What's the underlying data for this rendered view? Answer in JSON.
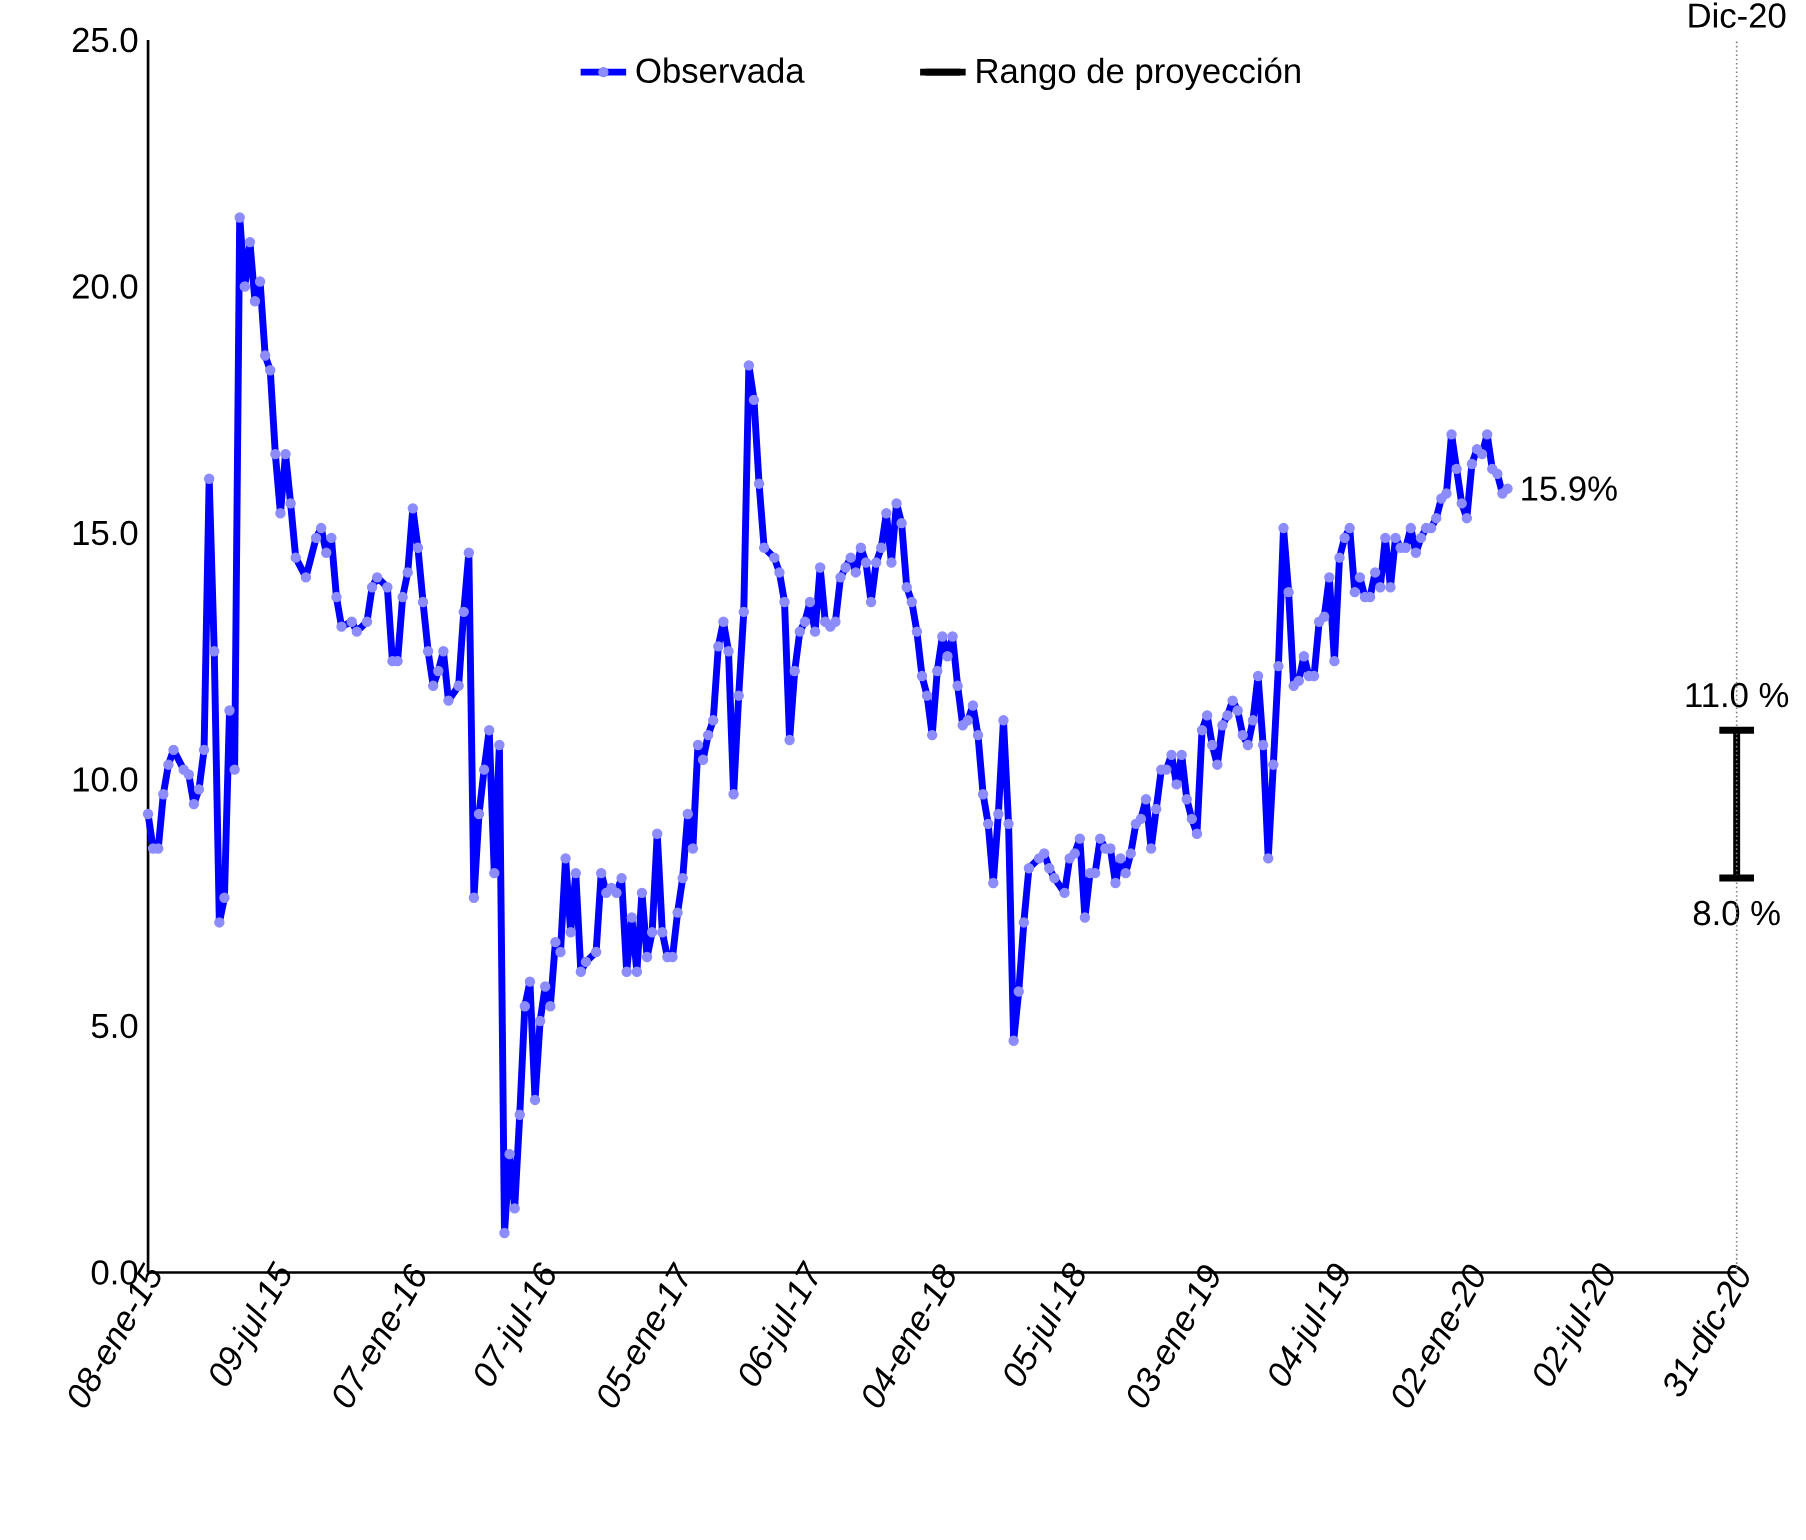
{
  "chart_data": {
    "type": "line",
    "xlim": [
      "2015-01-08",
      "2020-12-31"
    ],
    "xticks": [
      {
        "value": "2015-01-08",
        "label": "08-ene-15"
      },
      {
        "value": "2015-07-09",
        "label": "09-jul-15"
      },
      {
        "value": "2016-01-07",
        "label": "07-ene-16"
      },
      {
        "value": "2016-07-07",
        "label": "07-jul-16"
      },
      {
        "value": "2017-01-05",
        "label": "05-ene-17"
      },
      {
        "value": "2017-07-06",
        "label": "06-jul-17"
      },
      {
        "value": "2018-01-04",
        "label": "04-ene-18"
      },
      {
        "value": "2018-07-05",
        "label": "05-jul-18"
      },
      {
        "value": "2019-01-03",
        "label": "03-ene-19"
      },
      {
        "value": "2019-07-04",
        "label": "04-jul-19"
      },
      {
        "value": "2020-01-02",
        "label": "02-ene-20"
      },
      {
        "value": "2020-07-02",
        "label": "02-jul-20"
      },
      {
        "value": "2020-12-31",
        "label": "31-dic-20"
      }
    ],
    "ylim": [
      0,
      25
    ],
    "yticks": [
      {
        "value": 0,
        "label": "0.0"
      },
      {
        "value": 5,
        "label": "5.0"
      },
      {
        "value": 10,
        "label": "10.0"
      },
      {
        "value": 15,
        "label": "15.0"
      },
      {
        "value": 20,
        "label": "20.0"
      },
      {
        "value": 25,
        "label": "25.0"
      }
    ],
    "legend": "top",
    "marker": "circle",
    "x": [
      "2015-01-08",
      "2015-01-15",
      "2015-01-22",
      "2015-01-29",
      "2015-02-05",
      "2015-02-12",
      "2015-02-26",
      "2015-03-05",
      "2015-03-12",
      "2015-03-19",
      "2015-03-26",
      "2015-04-02",
      "2015-04-09",
      "2015-04-16",
      "2015-04-23",
      "2015-04-30",
      "2015-05-07",
      "2015-05-14",
      "2015-05-21",
      "2015-05-28",
      "2015-06-04",
      "2015-06-11",
      "2015-06-18",
      "2015-06-25",
      "2015-07-02",
      "2015-07-09",
      "2015-07-16",
      "2015-07-23",
      "2015-07-30",
      "2015-08-13",
      "2015-08-27",
      "2015-09-03",
      "2015-09-10",
      "2015-09-17",
      "2015-09-24",
      "2015-10-01",
      "2015-10-15",
      "2015-10-22",
      "2015-11-05",
      "2015-11-12",
      "2015-11-19",
      "2015-12-03",
      "2015-12-10",
      "2015-12-17",
      "2015-12-24",
      "2015-12-31",
      "2016-01-07",
      "2016-01-14",
      "2016-01-21",
      "2016-01-28",
      "2016-02-04",
      "2016-02-11",
      "2016-02-18",
      "2016-02-25",
      "2016-03-10",
      "2016-03-17",
      "2016-03-24",
      "2016-03-31",
      "2016-04-07",
      "2016-04-14",
      "2016-04-21",
      "2016-04-28",
      "2016-05-05",
      "2016-05-12",
      "2016-05-19",
      "2016-05-26",
      "2016-06-02",
      "2016-06-09",
      "2016-06-16",
      "2016-06-23",
      "2016-06-30",
      "2016-07-07",
      "2016-07-14",
      "2016-07-21",
      "2016-07-28",
      "2016-08-04",
      "2016-08-11",
      "2016-08-18",
      "2016-08-25",
      "2016-09-01",
      "2016-09-15",
      "2016-09-22",
      "2016-09-29",
      "2016-10-06",
      "2016-10-13",
      "2016-10-20",
      "2016-10-27",
      "2016-11-03",
      "2016-11-10",
      "2016-11-17",
      "2016-11-24",
      "2016-12-01",
      "2016-12-08",
      "2016-12-15",
      "2016-12-22",
      "2016-12-29",
      "2017-01-05",
      "2017-01-12",
      "2017-01-19",
      "2017-01-26",
      "2017-02-02",
      "2017-02-09",
      "2017-02-16",
      "2017-02-23",
      "2017-03-02",
      "2017-03-09",
      "2017-03-16",
      "2017-03-23",
      "2017-03-30",
      "2017-04-06",
      "2017-04-13",
      "2017-04-20",
      "2017-04-27",
      "2017-05-04",
      "2017-05-18",
      "2017-05-25",
      "2017-06-01",
      "2017-06-08",
      "2017-06-15",
      "2017-06-22",
      "2017-06-29",
      "2017-07-06",
      "2017-07-13",
      "2017-07-20",
      "2017-07-27",
      "2017-08-03",
      "2017-08-10",
      "2017-08-17",
      "2017-08-24",
      "2017-08-31",
      "2017-09-07",
      "2017-09-14",
      "2017-09-21",
      "2017-09-28",
      "2017-10-05",
      "2017-10-12",
      "2017-10-19",
      "2017-10-26",
      "2017-11-02",
      "2017-11-09",
      "2017-11-16",
      "2017-11-23",
      "2017-11-30",
      "2017-12-07",
      "2017-12-14",
      "2017-12-21",
      "2017-12-28",
      "2018-01-04",
      "2018-01-11",
      "2018-01-18",
      "2018-01-25",
      "2018-02-01",
      "2018-02-08",
      "2018-02-15",
      "2018-02-22",
      "2018-03-01",
      "2018-03-08",
      "2018-03-15",
      "2018-03-22",
      "2018-03-29",
      "2018-04-05",
      "2018-04-12",
      "2018-04-19",
      "2018-04-26",
      "2018-05-03",
      "2018-05-17",
      "2018-05-24",
      "2018-05-31",
      "2018-06-07",
      "2018-06-21",
      "2018-06-28",
      "2018-07-05",
      "2018-07-12",
      "2018-07-19",
      "2018-07-26",
      "2018-08-02",
      "2018-08-09",
      "2018-08-16",
      "2018-08-23",
      "2018-08-30",
      "2018-09-06",
      "2018-09-13",
      "2018-09-20",
      "2018-09-27",
      "2018-10-04",
      "2018-10-11",
      "2018-10-18",
      "2018-10-25",
      "2018-11-01",
      "2018-11-08",
      "2018-11-15",
      "2018-11-22",
      "2018-11-29",
      "2018-12-06",
      "2018-12-13",
      "2018-12-20",
      "2018-12-27",
      "2019-01-03",
      "2019-01-10",
      "2019-01-17",
      "2019-01-24",
      "2019-01-31",
      "2019-02-07",
      "2019-02-14",
      "2019-02-21",
      "2019-02-28",
      "2019-03-07",
      "2019-03-14",
      "2019-03-21",
      "2019-03-28",
      "2019-04-04",
      "2019-04-11",
      "2019-04-18",
      "2019-04-25",
      "2019-05-02",
      "2019-05-09",
      "2019-05-16",
      "2019-05-23",
      "2019-05-30",
      "2019-06-06",
      "2019-06-13",
      "2019-06-20",
      "2019-06-27",
      "2019-07-04",
      "2019-07-11",
      "2019-07-18",
      "2019-07-25",
      "2019-08-01",
      "2019-08-08",
      "2019-08-15",
      "2019-08-22",
      "2019-08-29",
      "2019-09-05",
      "2019-09-12",
      "2019-09-19",
      "2019-09-26",
      "2019-10-03",
      "2019-10-10",
      "2019-10-17",
      "2019-10-24",
      "2019-10-31",
      "2019-11-07",
      "2019-11-14",
      "2019-11-21",
      "2019-11-28",
      "2019-12-05",
      "2019-12-12",
      "2019-12-19",
      "2019-12-26",
      "2020-01-02",
      "2020-01-09",
      "2020-01-16",
      "2020-01-23",
      "2020-01-30",
      "2020-02-06",
      "2020-02-13",
      "2020-02-20"
    ],
    "series": [
      {
        "name": "Observada",
        "color": "#0000ff",
        "values": [
          9.3,
          8.6,
          8.6,
          9.7,
          10.3,
          10.6,
          10.2,
          10.1,
          9.5,
          9.8,
          10.6,
          16.1,
          12.6,
          7.1,
          7.6,
          11.4,
          10.2,
          21.4,
          20.0,
          20.9,
          19.7,
          20.1,
          18.6,
          18.3,
          16.6,
          15.4,
          16.6,
          15.6,
          14.5,
          14.1,
          14.9,
          15.1,
          14.6,
          14.9,
          13.7,
          13.1,
          13.2,
          13.0,
          13.2,
          13.9,
          14.1,
          13.9,
          12.4,
          12.4,
          13.7,
          14.2,
          15.5,
          14.7,
          13.6,
          12.6,
          11.9,
          12.2,
          12.6,
          11.6,
          11.9,
          13.4,
          14.6,
          7.6,
          9.3,
          10.2,
          11.0,
          8.1,
          10.7,
          0.8,
          2.4,
          1.3,
          3.2,
          5.4,
          5.9,
          3.5,
          5.1,
          5.8,
          5.4,
          6.7,
          6.5,
          8.4,
          6.9,
          8.1,
          6.1,
          6.3,
          6.5,
          8.1,
          7.7,
          7.8,
          7.7,
          8.0,
          6.1,
          7.2,
          6.1,
          7.7,
          6.4,
          6.9,
          8.9,
          6.9,
          6.4,
          6.4,
          7.3,
          8.0,
          9.3,
          8.6,
          10.7,
          10.4,
          10.9,
          11.2,
          12.7,
          13.2,
          12.6,
          9.7,
          11.7,
          13.4,
          18.4,
          17.7,
          16.0,
          14.7,
          14.5,
          14.2,
          13.6,
          10.8,
          12.2,
          13.0,
          13.2,
          13.6,
          13.0,
          14.3,
          13.2,
          13.1,
          13.2,
          14.1,
          14.3,
          14.5,
          14.2,
          14.7,
          14.4,
          13.6,
          14.4,
          14.7,
          15.4,
          14.4,
          15.6,
          15.2,
          13.9,
          13.6,
          13.0,
          12.1,
          11.7,
          10.9,
          12.2,
          12.9,
          12.5,
          12.9,
          11.9,
          11.1,
          11.2,
          11.5,
          10.9,
          9.7,
          9.1,
          7.9,
          9.3,
          11.2,
          9.1,
          4.7,
          5.7,
          7.1,
          8.2,
          8.4,
          8.5,
          8.2,
          8.0,
          7.7,
          8.4,
          8.5,
          8.8,
          7.2,
          8.1,
          8.1,
          8.8,
          8.6,
          8.6,
          7.9,
          8.4,
          8.1,
          8.5,
          9.1,
          9.2,
          9.6,
          8.6,
          9.4,
          10.2,
          10.2,
          10.5,
          9.9,
          10.5,
          9.6,
          9.2,
          8.9,
          11.0,
          11.3,
          10.7,
          10.3,
          11.1,
          11.3,
          11.6,
          11.4,
          10.9,
          10.7,
          11.2,
          12.1,
          10.7,
          8.4,
          10.3,
          12.3,
          15.1,
          13.8,
          11.9,
          12.0,
          12.5,
          12.1,
          12.1,
          13.2,
          13.3,
          14.1,
          12.4,
          14.5,
          14.9,
          15.1,
          13.8,
          14.1,
          13.7,
          13.7,
          14.2,
          13.9,
          14.9,
          13.9,
          14.9,
          14.7,
          14.7,
          15.1,
          14.6,
          14.9,
          15.1,
          15.1,
          15.3,
          15.7,
          15.8,
          17.0,
          16.3,
          15.6,
          15.3,
          16.4,
          16.7,
          16.6,
          17.0,
          16.3,
          16.2,
          15.8,
          15.9
        ]
      },
      {
        "name": "Rango de proyección",
        "color": "#000000",
        "marker": "none",
        "x": [
          "2020-12-31",
          "2020-12-31"
        ],
        "values": [
          8.0,
          11.0
        ],
        "value_labels": [
          "8.0 %",
          "11.0 %"
        ]
      }
    ],
    "annotations": [
      {
        "text": "15.9%",
        "x": "2020-02-20",
        "y": 15.9
      }
    ],
    "ref_lines": [
      {
        "axis": "x",
        "value": "2020-12-31",
        "label": "Dic-20",
        "line_style": "dotted",
        "color": "#808080"
      }
    ]
  }
}
